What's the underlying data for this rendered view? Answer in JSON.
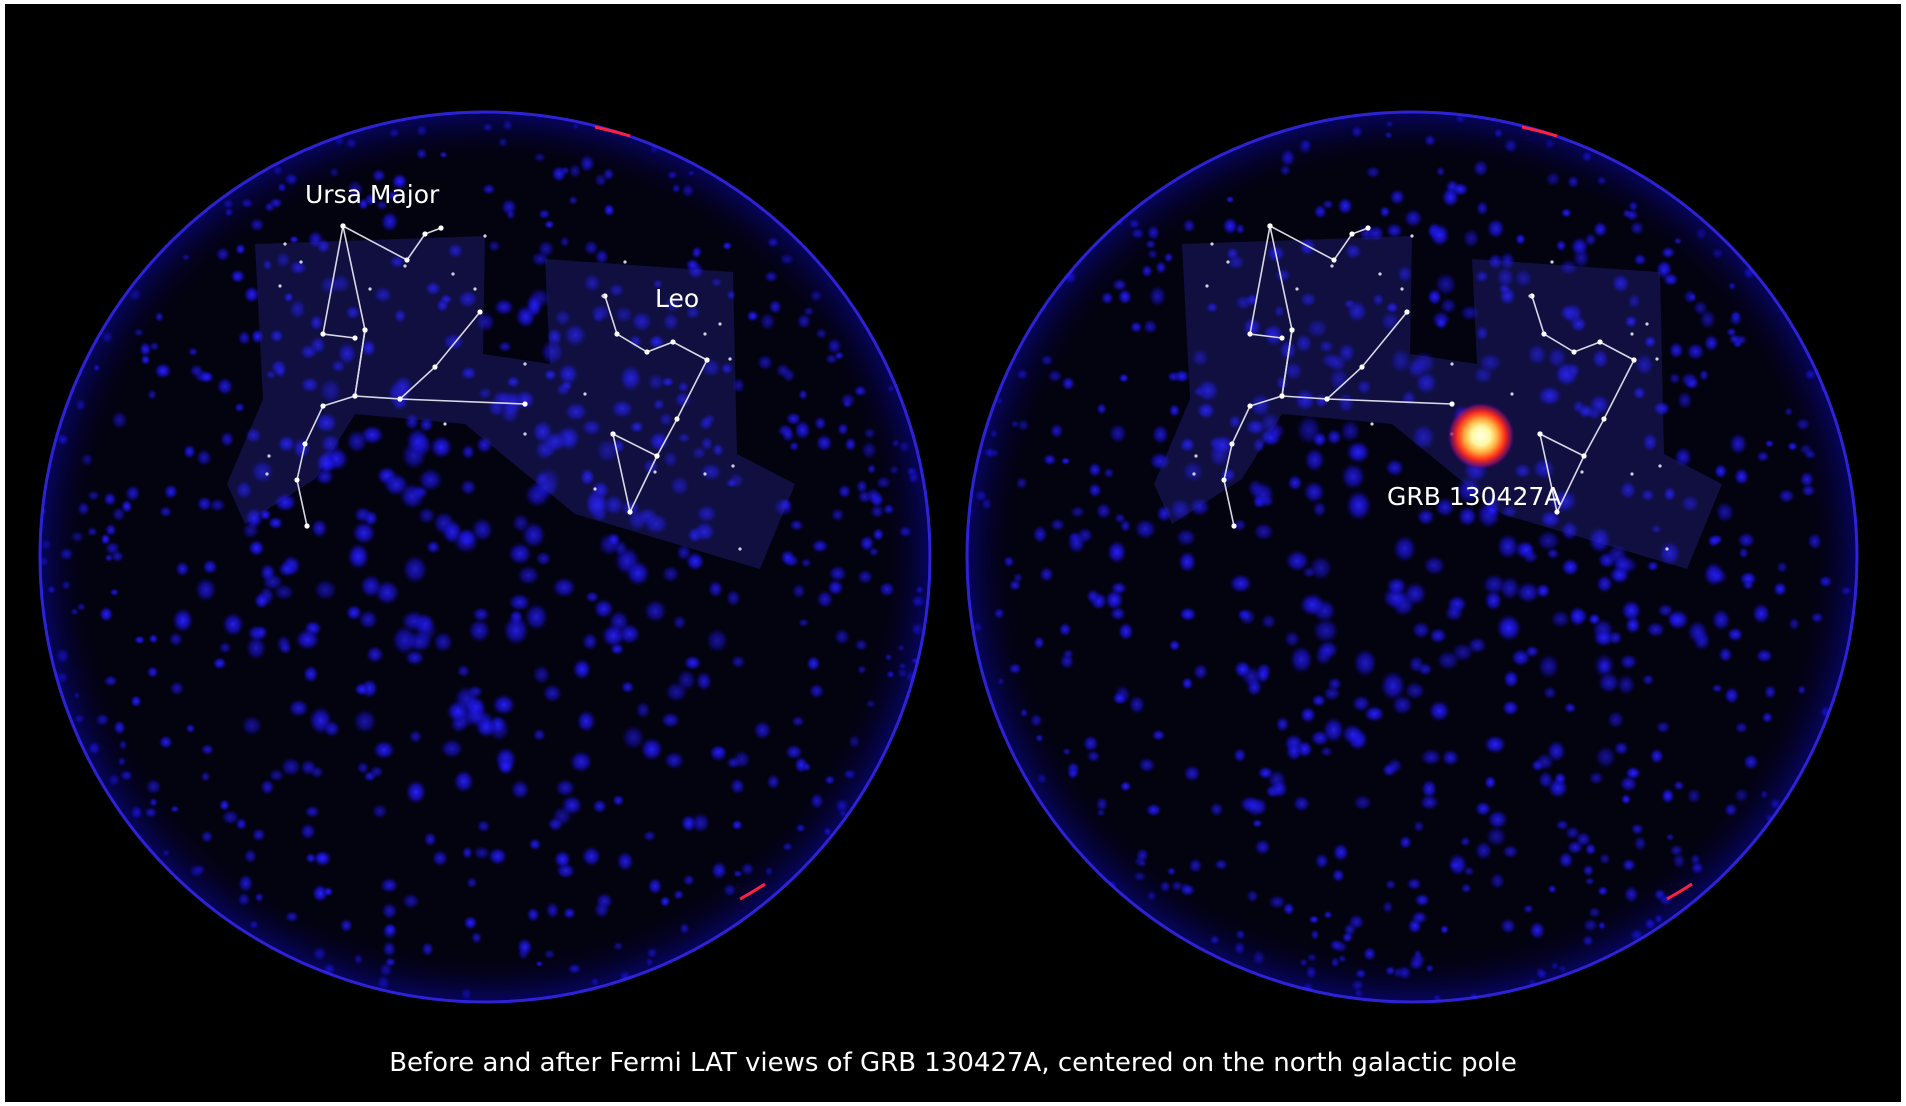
{
  "labels": {
    "ursa_major": "Ursa Major",
    "leo": "Leo",
    "grb": "GRB 130427A"
  },
  "caption": "Before and after Fermi LAT views of GRB 130427A, centered on the north galactic pole",
  "colors": {
    "background": "#000000",
    "sky_blue": "#1a14ff",
    "constellation_lines": "#d8d8e8",
    "grb_core": "#ffffe0",
    "grb_glow": "#ff3020",
    "limb_red": "#ff2040",
    "text": "#ffffff"
  },
  "panels": [
    {
      "name": "before",
      "shows_grb": false
    },
    {
      "name": "after",
      "shows_grb": true
    }
  ]
}
